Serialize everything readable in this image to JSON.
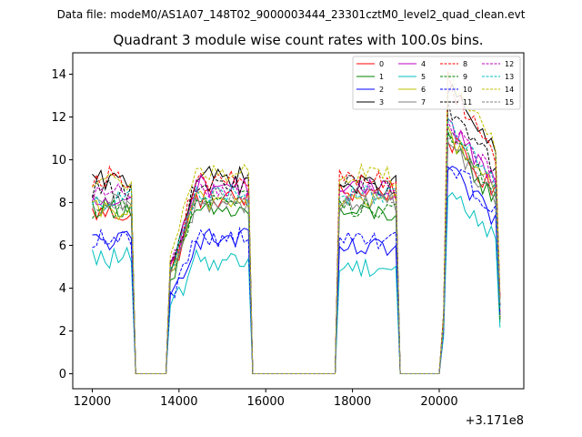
{
  "chart_data": {
    "type": "line",
    "suptitle": "Data file: modeM0/AS1A07_148T02_9000003444_23301cztM0_level2_quad_clean.evt",
    "title": "Quadrant 3 module wise count rates with 100.0s bins.",
    "xlabel": "",
    "ylabel": "",
    "x_offset_label": "+3.171e8",
    "xlim": [
      11550,
      21950
    ],
    "ylim": [
      -0.7,
      15.0
    ],
    "xticks": [
      12000,
      14000,
      16000,
      18000,
      20000
    ],
    "xtick_labels": [
      "12000",
      "14000",
      "16000",
      "18000",
      "20000"
    ],
    "yticks": [
      0,
      2,
      4,
      6,
      8,
      10,
      12,
      14
    ],
    "ytick_labels": [
      "0",
      "2",
      "4",
      "6",
      "8",
      "10",
      "12",
      "14"
    ],
    "legend_position": "top-right",
    "segments": [
      {
        "start": 12000,
        "end": 12900,
        "gap_end": 13800
      },
      {
        "start": 13800,
        "end": 15600,
        "gap_end": 17700
      },
      {
        "start": 17700,
        "end": 19000,
        "gap_end": 20100
      },
      {
        "start": 20100,
        "end": 21400,
        "gap_end": null
      }
    ],
    "series": [
      {
        "name": "0",
        "color": "#ff0000",
        "dash": "solid",
        "levels": [
          7.5,
          8.2,
          8.5,
          8.8
        ]
      },
      {
        "name": "1",
        "color": "#008000",
        "dash": "solid",
        "levels": [
          7.8,
          7.6,
          7.5,
          8.6
        ]
      },
      {
        "name": "2",
        "color": "#0000ff",
        "dash": "solid",
        "levels": [
          6.2,
          6.3,
          5.8,
          7.6
        ]
      },
      {
        "name": "3",
        "color": "#000000",
        "dash": "solid",
        "levels": [
          9.0,
          9.2,
          8.8,
          10.8
        ]
      },
      {
        "name": "4",
        "color": "#bf00bf",
        "dash": "solid",
        "levels": [
          8.0,
          8.8,
          8.6,
          9.4
        ]
      },
      {
        "name": "5",
        "color": "#00bfbf",
        "dash": "solid",
        "levels": [
          5.4,
          5.3,
          5.0,
          6.8
        ]
      },
      {
        "name": "6",
        "color": "#bfbf00",
        "dash": "solid",
        "levels": [
          7.6,
          8.1,
          8.1,
          9.0
        ]
      },
      {
        "name": "7",
        "color": "#808080",
        "dash": "solid",
        "levels": [
          7.9,
          8.0,
          8.0,
          8.7
        ]
      },
      {
        "name": "8",
        "color": "#ff0000",
        "dash": "dashed",
        "levels": [
          9.2,
          9.0,
          9.1,
          10.9
        ]
      },
      {
        "name": "9",
        "color": "#008000",
        "dash": "dashed",
        "levels": [
          7.7,
          8.2,
          7.8,
          9.0
        ]
      },
      {
        "name": "10",
        "color": "#0000ff",
        "dash": "dashed",
        "levels": [
          6.3,
          6.4,
          6.2,
          8.0
        ]
      },
      {
        "name": "11",
        "color": "#000000",
        "dash": "dashed",
        "levels": [
          8.6,
          8.9,
          8.8,
          10.0
        ]
      },
      {
        "name": "12",
        "color": "#bf00bf",
        "dash": "dashed",
        "levels": [
          8.4,
          8.6,
          8.6,
          9.6
        ]
      },
      {
        "name": "13",
        "color": "#00bfbf",
        "dash": "dashed",
        "levels": [
          8.2,
          8.4,
          8.4,
          9.2
        ]
      },
      {
        "name": "14",
        "color": "#bfbf00",
        "dash": "dashed",
        "levels": [
          9.0,
          9.4,
          9.3,
          11.2
        ]
      },
      {
        "name": "15",
        "color": "#808080",
        "dash": "dashed",
        "levels": [
          8.0,
          8.2,
          8.2,
          9.0
        ]
      }
    ]
  }
}
